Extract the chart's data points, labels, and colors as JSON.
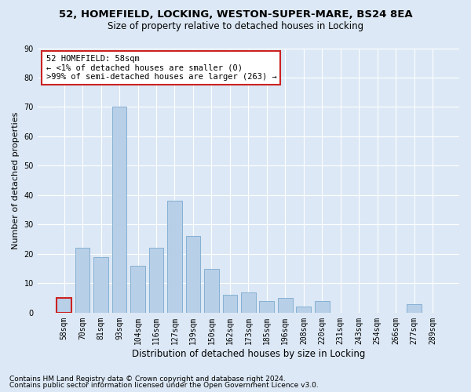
{
  "title1": "52, HOMEFIELD, LOCKING, WESTON-SUPER-MARE, BS24 8EA",
  "title2": "Size of property relative to detached houses in Locking",
  "xlabel": "Distribution of detached houses by size in Locking",
  "ylabel": "Number of detached properties",
  "categories": [
    "58sqm",
    "70sqm",
    "81sqm",
    "93sqm",
    "104sqm",
    "116sqm",
    "127sqm",
    "139sqm",
    "150sqm",
    "162sqm",
    "173sqm",
    "185sqm",
    "196sqm",
    "208sqm",
    "220sqm",
    "231sqm",
    "243sqm",
    "254sqm",
    "266sqm",
    "277sqm",
    "289sqm"
  ],
  "values": [
    5,
    22,
    19,
    70,
    16,
    22,
    38,
    26,
    15,
    6,
    7,
    4,
    5,
    2,
    4,
    0,
    0,
    0,
    0,
    3,
    0
  ],
  "bar_color": "#b8cfe8",
  "bar_edge_color": "#6a9fc8",
  "highlight_index": 0,
  "highlight_color": "#cc2222",
  "annotation_text": "52 HOMEFIELD: 58sqm\n← <1% of detached houses are smaller (0)\n>99% of semi-detached houses are larger (263) →",
  "annotation_box_color": "#ffffff",
  "annotation_box_edge": "#cc2222",
  "ylim": [
    0,
    90
  ],
  "yticks": [
    0,
    10,
    20,
    30,
    40,
    50,
    60,
    70,
    80,
    90
  ],
  "background_color": "#dce8f5",
  "grid_color": "#ffffff",
  "footer1": "Contains HM Land Registry data © Crown copyright and database right 2024.",
  "footer2": "Contains public sector information licensed under the Open Government Licence v3.0.",
  "title1_fontsize": 9.5,
  "title2_fontsize": 8.5,
  "xlabel_fontsize": 8.5,
  "ylabel_fontsize": 8,
  "tick_fontsize": 7,
  "annotation_fontsize": 7.5,
  "footer_fontsize": 6.5
}
